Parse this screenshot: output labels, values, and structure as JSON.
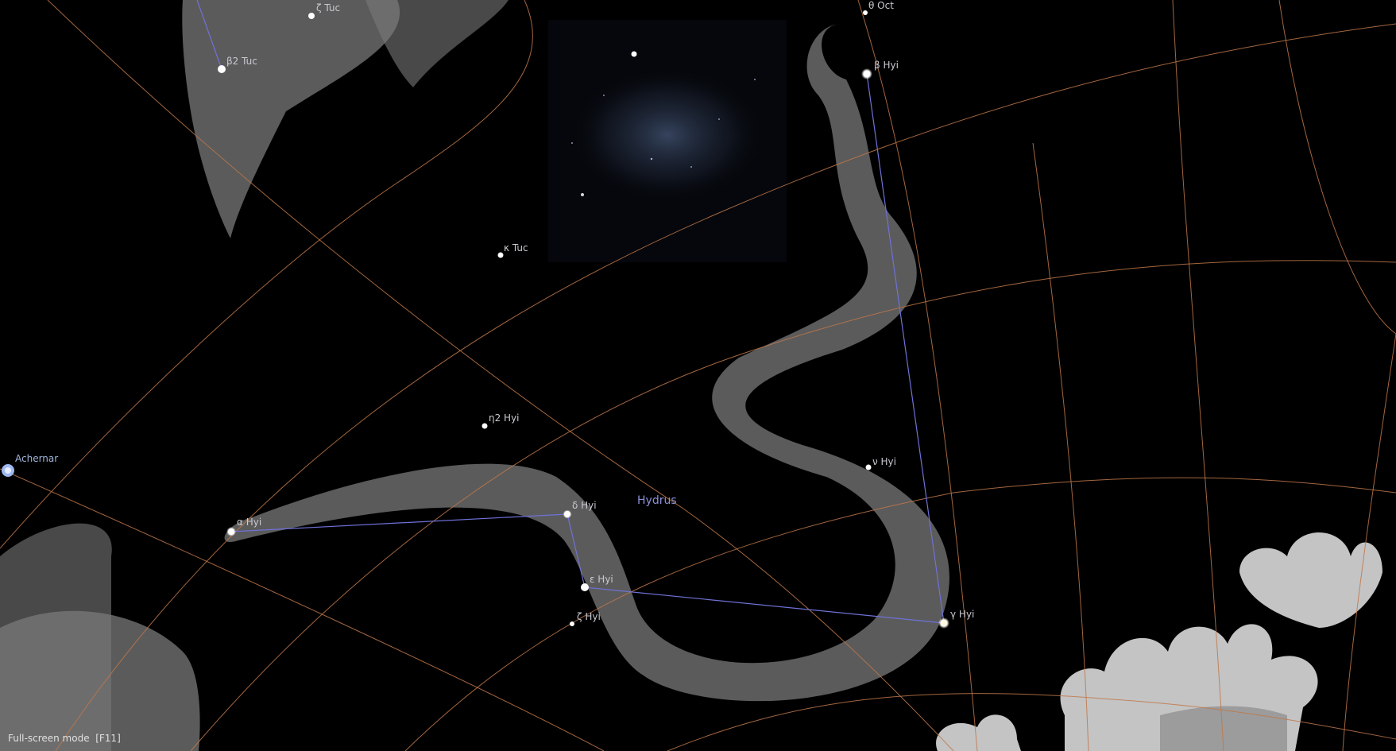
{
  "view": {
    "mode_hint": "Full-screen mode  [F11]",
    "constellation_name": "Hydrus"
  },
  "stars": {
    "zeta_tuc": "ζ Tuc",
    "beta2_tuc": "β2 Tuc",
    "kappa_tuc": "κ Tuc",
    "theta_oct": "θ Oct",
    "beta_hyi": "β Hyi",
    "eta2_hyi": "η2 Hyi",
    "achernar": "Achernar",
    "alpha_hyi": "α Hyi",
    "delta_hyi": "δ Hyi",
    "nu_hyi": "ν Hyi",
    "epsilon_hyi": "ε Hyi",
    "zeta_hyi": "ζ Hyi",
    "gamma_hyi": "γ Hyi"
  },
  "colors": {
    "background": "#000000",
    "grid_lines": "#c0784a",
    "constellation_lines": "#6f72d8",
    "artwork": "#8a8a8a",
    "star_label": "#c9c9d2"
  }
}
